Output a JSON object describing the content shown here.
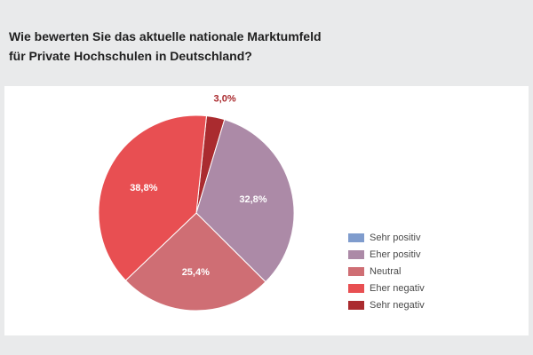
{
  "title": {
    "line1": "Wie bewerten Sie das aktuelle nationale Marktumfeld",
    "line2": "für Private Hochschulen in Deutschland?"
  },
  "chart_data": {
    "type": "pie",
    "title": "Wie bewerten Sie das aktuelle nationale Marktumfeld für Private Hochschulen in Deutschland?",
    "categories": [
      "Sehr positiv",
      "Eher positiv",
      "Neutral",
      "Eher negativ",
      "Sehr negativ"
    ],
    "values": [
      0.0,
      32.8,
      25.4,
      38.8,
      3.0
    ],
    "value_labels": [
      "",
      "32,8%",
      "25,4%",
      "38,8%",
      "3,0%"
    ],
    "colors": [
      "#7f9ccd",
      "#ac8aa7",
      "#cf6e74",
      "#e84f52",
      "#aa2b2f"
    ],
    "legend_position": "right"
  }
}
